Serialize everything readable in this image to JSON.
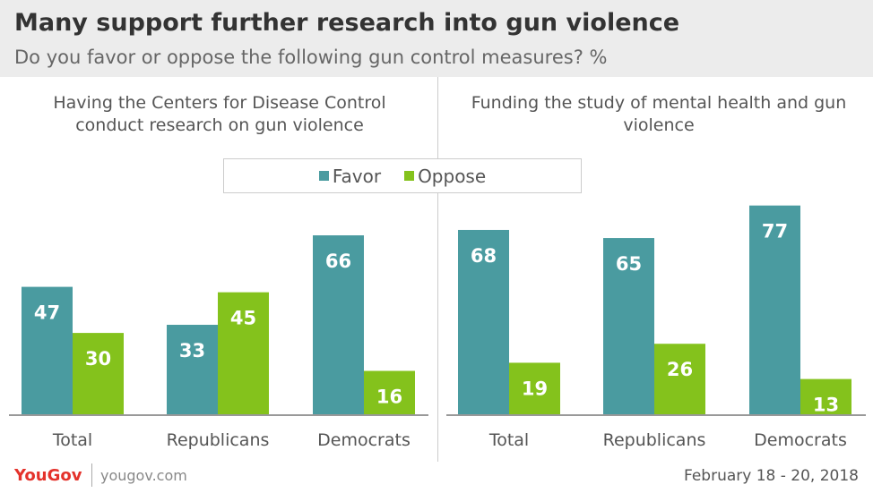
{
  "header": {
    "title": "Many support further research into gun violence",
    "subtitle": "Do you favor or oppose the following gun control measures? %"
  },
  "legend": {
    "favor": "Favor",
    "oppose": "Oppose"
  },
  "colors": {
    "favor": "#4a9ba0",
    "oppose": "#84c21c"
  },
  "chart_data": [
    {
      "type": "bar",
      "title": "Having the Centers for Disease Control conduct research on gun violence",
      "categories": [
        "Total",
        "Republicans",
        "Democrats"
      ],
      "series": [
        {
          "name": "Favor",
          "values": [
            47,
            33,
            66
          ]
        },
        {
          "name": "Oppose",
          "values": [
            30,
            45,
            16
          ]
        }
      ],
      "ylim": [
        0,
        80
      ]
    },
    {
      "type": "bar",
      "title": "Funding the study of mental health and gun violence",
      "categories": [
        "Total",
        "Republicans",
        "Democrats"
      ],
      "series": [
        {
          "name": "Favor",
          "values": [
            68,
            65,
            77
          ]
        },
        {
          "name": "Oppose",
          "values": [
            19,
            26,
            13
          ]
        }
      ],
      "ylim": [
        0,
        80
      ]
    }
  ],
  "footer": {
    "logo": "YouGov",
    "site": "yougov.com",
    "date": "February 18 - 20, 2018"
  }
}
